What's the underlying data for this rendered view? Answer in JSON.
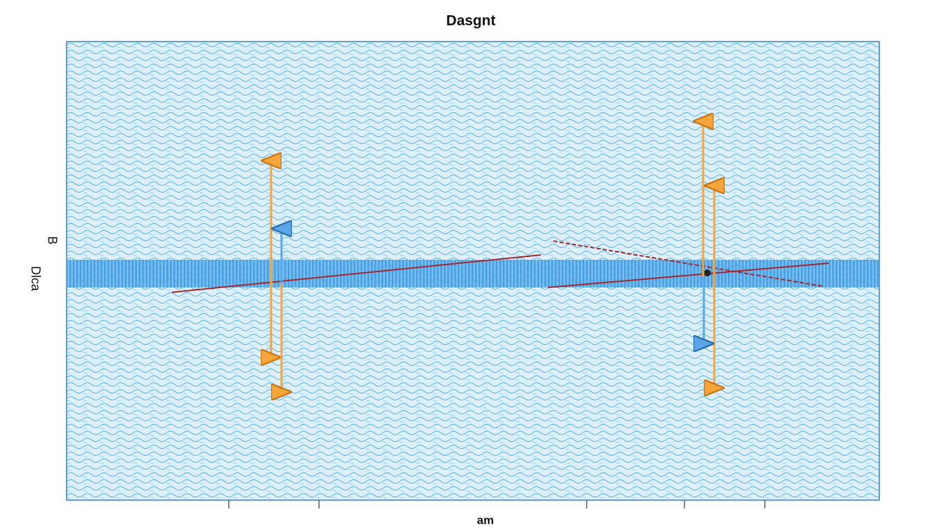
{
  "header": {
    "title": "Dasgnt"
  },
  "axes": {
    "x_label": "am",
    "y_label": "Dlca",
    "y_marker": "B"
  }
}
